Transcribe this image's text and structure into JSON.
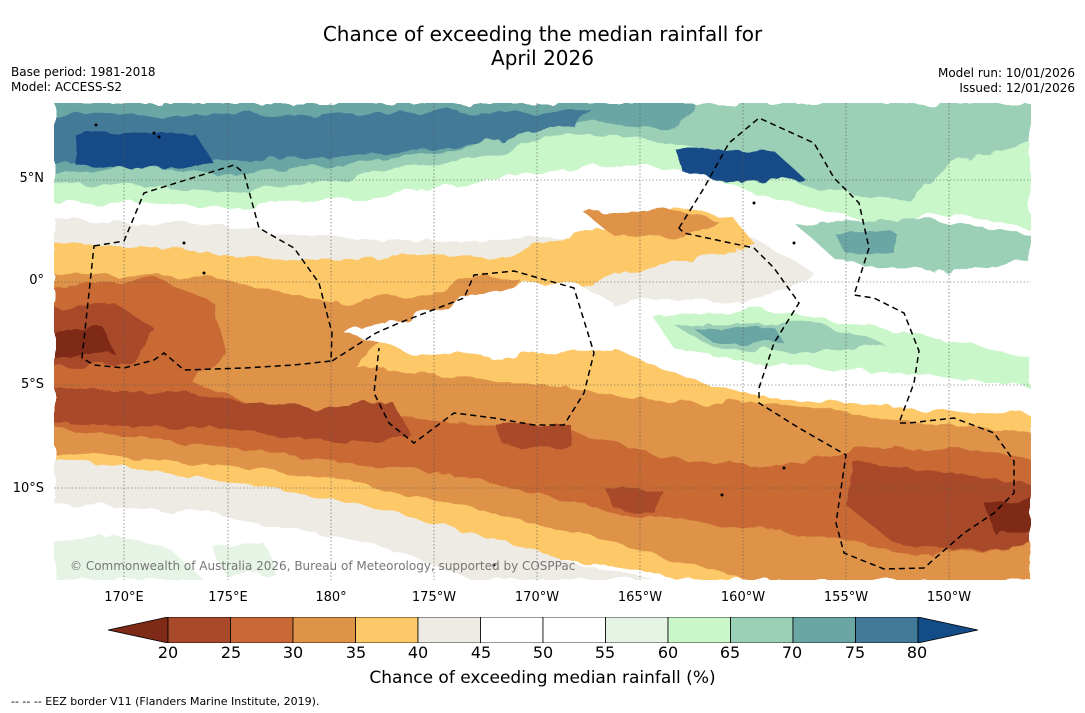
{
  "title_line1": "Chance of exceeding the median rainfall for",
  "title_line2": "April 2026",
  "meta_left": {
    "base_period": "Base period: 1981-2018",
    "model": "Model: ACCESS-S2"
  },
  "meta_right": {
    "model_run": "Model run: 10/01/2026",
    "issued": "Issued: 12/01/2026"
  },
  "lat_labels": [
    "5°N",
    "0°",
    "5°S",
    "10°S"
  ],
  "lon_labels": [
    "170°E",
    "175°E",
    "180°",
    "175°W",
    "170°W",
    "165°W",
    "160°W",
    "155°W",
    "150°W"
  ],
  "copyright": "© Commonwealth of Australia 2026, Bureau of Meteorology, supported by COSPPac",
  "colorbar": {
    "ticks": [
      "20",
      "25",
      "30",
      "35",
      "40",
      "45",
      "50",
      "55",
      "60",
      "65",
      "70",
      "75",
      "80"
    ],
    "colors": [
      "#7e2a17",
      "#a8492a",
      "#c96a36",
      "#de9348",
      "#fdc867",
      "#eeebe5",
      "#ffffff",
      "#ffffff",
      "#e6f4e6",
      "#c9f7c9",
      "#9bcfb6",
      "#6aa6a4",
      "#427a98",
      "#134c87"
    ],
    "label": "Chance of exceeding median rainfall (%)"
  },
  "footer": "--  --  -- EEZ border V11 (Flanders Marine Institute, 2019)."
}
